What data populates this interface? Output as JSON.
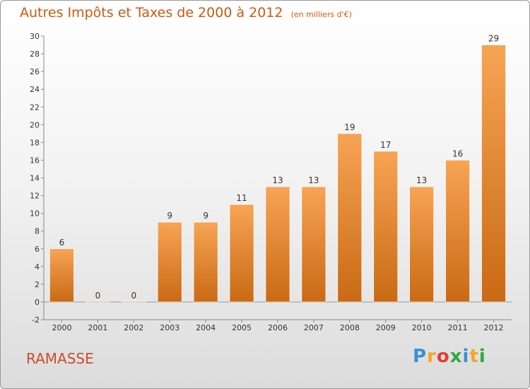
{
  "chart_data": {
    "type": "bar",
    "title": "Autres Impôts et Taxes de 2000 à 2012",
    "subtitle": "(en milliers d'€)",
    "categories": [
      "2000",
      "2001",
      "2002",
      "2003",
      "2004",
      "2005",
      "2006",
      "2007",
      "2008",
      "2009",
      "2010",
      "2011",
      "2012"
    ],
    "values": [
      6,
      0,
      0,
      9,
      9,
      11,
      13,
      13,
      19,
      17,
      13,
      16,
      29
    ],
    "ylim": [
      -2,
      30
    ],
    "yticks": [
      -2,
      0,
      2,
      4,
      6,
      8,
      10,
      12,
      14,
      16,
      18,
      20,
      22,
      24,
      26,
      28,
      30
    ],
    "grid": false,
    "bar_color": "#f08a2e"
  },
  "commune": "RAMASSE",
  "brand": {
    "letters": [
      "P",
      "r",
      "o",
      "x",
      "i",
      "t",
      "i"
    ],
    "colors": [
      "#3a8fd8",
      "#f5a623",
      "#e63c2e",
      "#2eaa3c",
      "#3a8fd8",
      "#f5a623",
      "#2eaa3c"
    ]
  }
}
